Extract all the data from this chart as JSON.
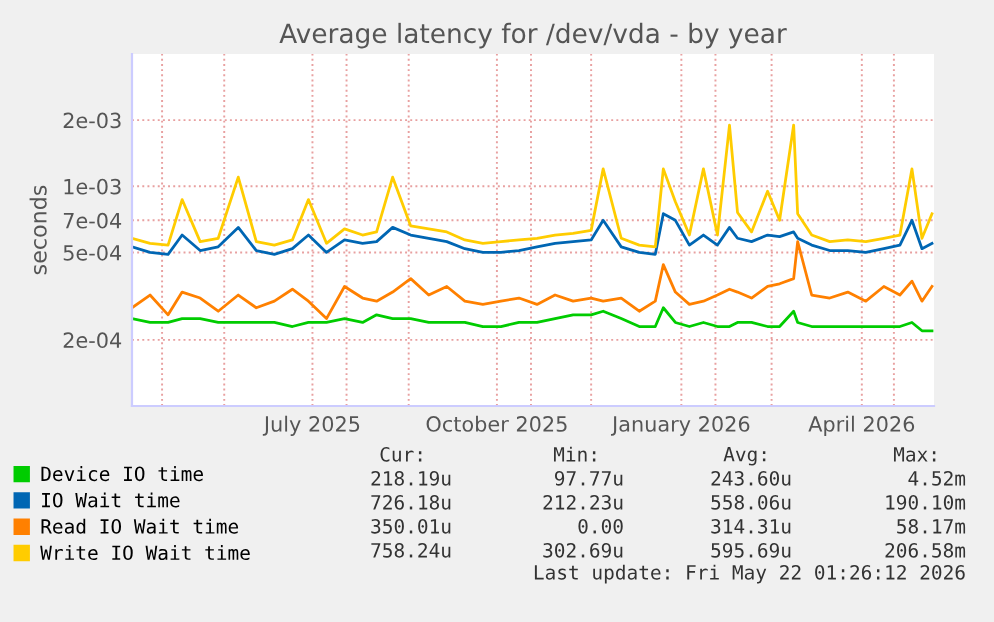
{
  "chart_data": {
    "type": "line",
    "title": "Average latency for /dev/vda - by year",
    "ylabel": "seconds",
    "log": "y",
    "x": [
      "2025-04-16",
      "2025-04-25",
      "2025-05-04",
      "2025-05-11",
      "2025-05-20",
      "2025-05-29",
      "2025-06-08",
      "2025-06-17",
      "2025-06-26",
      "2025-07-05",
      "2025-07-13",
      "2025-07-22",
      "2025-07-31",
      "2025-08-09",
      "2025-08-16",
      "2025-08-24",
      "2025-09-02",
      "2025-09-11",
      "2025-09-20",
      "2025-09-29",
      "2025-10-08",
      "2025-10-17",
      "2025-10-26",
      "2025-11-04",
      "2025-11-13",
      "2025-11-22",
      "2025-12-01",
      "2025-12-07",
      "2025-12-16",
      "2025-12-25",
      "2026-01-02",
      "2026-01-06",
      "2026-01-12",
      "2026-01-19",
      "2026-01-26",
      "2026-02-02",
      "2026-02-08",
      "2026-02-12",
      "2026-02-19",
      "2026-02-27",
      "2026-03-05",
      "2026-03-12",
      "2026-03-14",
      "2026-03-21",
      "2026-03-30",
      "2026-04-08",
      "2026-04-17",
      "2026-04-26",
      "2026-05-04",
      "2026-05-10",
      "2026-05-15",
      "2026-05-20"
    ],
    "series": [
      {
        "name": "Device IO time",
        "color": "#00cc00",
        "values": [
          0.00025,
          0.00024,
          0.00024,
          0.00025,
          0.00025,
          0.00024,
          0.00024,
          0.00024,
          0.00024,
          0.00023,
          0.00024,
          0.00024,
          0.00025,
          0.00024,
          0.00026,
          0.00025,
          0.00025,
          0.00024,
          0.00024,
          0.00024,
          0.00023,
          0.00023,
          0.00024,
          0.00024,
          0.00025,
          0.00026,
          0.00026,
          0.00027,
          0.00025,
          0.00023,
          0.00023,
          0.00028,
          0.00024,
          0.00023,
          0.00024,
          0.00023,
          0.00023,
          0.00024,
          0.00024,
          0.00023,
          0.00023,
          0.00027,
          0.00024,
          0.00023,
          0.00023,
          0.00023,
          0.00023,
          0.00023,
          0.00023,
          0.00024,
          0.00022,
          0.00022
        ]
      },
      {
        "name": "IO Wait time",
        "color": "#0066b3",
        "values": [
          0.00053,
          0.0005,
          0.00049,
          0.0006,
          0.00051,
          0.00053,
          0.00065,
          0.00051,
          0.00049,
          0.00052,
          0.0006,
          0.0005,
          0.00057,
          0.00055,
          0.00056,
          0.00065,
          0.0006,
          0.00058,
          0.00056,
          0.00052,
          0.0005,
          0.0005,
          0.00051,
          0.00053,
          0.00055,
          0.00056,
          0.00057,
          0.0007,
          0.00053,
          0.0005,
          0.00049,
          0.00075,
          0.0007,
          0.00054,
          0.0006,
          0.00054,
          0.00065,
          0.00058,
          0.00056,
          0.0006,
          0.00059,
          0.00062,
          0.00058,
          0.00054,
          0.00051,
          0.00051,
          0.0005,
          0.00052,
          0.00054,
          0.0007,
          0.00052,
          0.00055
        ]
      },
      {
        "name": "Read IO Wait time",
        "color": "#ff8000",
        "values": [
          0.00028,
          0.00032,
          0.00026,
          0.00033,
          0.00031,
          0.00027,
          0.00032,
          0.00028,
          0.0003,
          0.00034,
          0.0003,
          0.00025,
          0.00035,
          0.00031,
          0.0003,
          0.00033,
          0.00038,
          0.00032,
          0.00035,
          0.0003,
          0.00029,
          0.0003,
          0.00031,
          0.00029,
          0.00032,
          0.0003,
          0.00031,
          0.0003,
          0.00031,
          0.00027,
          0.0003,
          0.00044,
          0.00033,
          0.00029,
          0.0003,
          0.00032,
          0.00034,
          0.00033,
          0.00031,
          0.00035,
          0.00036,
          0.00038,
          0.00056,
          0.00032,
          0.00031,
          0.00033,
          0.0003,
          0.00035,
          0.00032,
          0.00037,
          0.0003,
          0.00035
        ]
      },
      {
        "name": "Write IO Wait time",
        "color": "#ffcc00",
        "values": [
          0.00058,
          0.00055,
          0.00054,
          0.00087,
          0.00056,
          0.00058,
          0.0011,
          0.00056,
          0.00054,
          0.00057,
          0.00087,
          0.00055,
          0.00064,
          0.0006,
          0.00062,
          0.0011,
          0.00066,
          0.00064,
          0.00062,
          0.00057,
          0.00055,
          0.00056,
          0.00057,
          0.00058,
          0.0006,
          0.00061,
          0.00063,
          0.0012,
          0.00058,
          0.00054,
          0.00053,
          0.0012,
          0.00085,
          0.0006,
          0.0012,
          0.0006,
          0.0019,
          0.00076,
          0.00062,
          0.00095,
          0.0007,
          0.0019,
          0.00075,
          0.0006,
          0.00056,
          0.00057,
          0.00056,
          0.00058,
          0.0006,
          0.0012,
          0.00058,
          0.00075
        ]
      }
    ],
    "xlim": [
      "2025-04-16",
      "2026-05-21"
    ],
    "xticks": [
      {
        "value": "2025-05-01",
        "label": null
      },
      {
        "value": "2025-06-01",
        "label": null
      },
      {
        "value": "2025-07-15",
        "label": "July 2025"
      },
      {
        "value": "2025-08-01",
        "label": null
      },
      {
        "value": "2025-09-01",
        "label": null
      },
      {
        "value": "2025-10-15",
        "label": "October 2025"
      },
      {
        "value": "2025-11-01",
        "label": null
      },
      {
        "value": "2025-12-01",
        "label": null
      },
      {
        "value": "2026-01-15",
        "label": "January 2026"
      },
      {
        "value": "2026-02-01",
        "label": null
      },
      {
        "value": "2026-03-01",
        "label": null
      },
      {
        "value": "2026-04-15",
        "label": "April 2026"
      },
      {
        "value": "2026-05-01",
        "label": null
      }
    ],
    "ylim": [
      0.0001,
      0.004
    ],
    "yticks": [
      {
        "value": 0.0002,
        "label": "2e-04"
      },
      {
        "value": 0.0005,
        "label": "5e-04"
      },
      {
        "value": 0.0007,
        "label": "7e-04"
      },
      {
        "value": 0.001,
        "label": "1e-03"
      },
      {
        "value": 0.002,
        "label": "2e-03"
      }
    ],
    "grid": true,
    "legend": "bottom",
    "line_style": "solid",
    "marker": "none",
    "annotations": [
      "Cur:",
      "Min:",
      "Avg:",
      "Max:",
      "218.19u",
      "97.77u",
      "243.60u",
      "4.52m",
      "726.18u",
      "212.23u",
      "558.06u",
      "190.10m",
      "350.01u",
      "0.00",
      "314.31u",
      "58.17m",
      "758.24u",
      "302.69u",
      "595.69u",
      "206.58m",
      "Last update: Fri May 22 01:26:12 2026"
    ]
  }
}
